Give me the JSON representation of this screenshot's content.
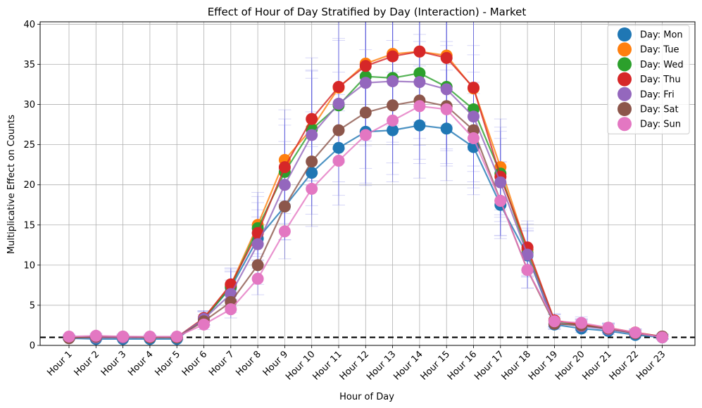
{
  "chart_data": {
    "type": "line",
    "title": "Effect of Hour of Day Stratified by Day (Interaction) - Market",
    "xlabel": "Hour of Day",
    "ylabel": "Multiplicative Effect on Counts",
    "categories": [
      "Hour 1",
      "Hour 2",
      "Hour 3",
      "Hour 4",
      "Hour 5",
      "Hour 6",
      "Hour 7",
      "Hour 8",
      "Hour 9",
      "Hour 10",
      "Hour 11",
      "Hour 12",
      "Hour 13",
      "Hour 14",
      "Hour 15",
      "Hour 16",
      "Hour 17",
      "Hour 18",
      "Hour 19",
      "Hour 20",
      "Hour 21",
      "Hour 22",
      "Hour 23"
    ],
    "ylim": [
      0,
      40.3
    ],
    "yticks": [
      0,
      5,
      10,
      15,
      20,
      25,
      30,
      35,
      40
    ],
    "grid": true,
    "legend_position": "top-right",
    "reference_line": 1,
    "series": [
      {
        "name": "Day: Mon",
        "color": "#1f77b4",
        "values": [
          0.9,
          0.8,
          0.8,
          0.8,
          0.8,
          3.3,
          7.2,
          13.3,
          17.3,
          21.5,
          24.6,
          26.6,
          26.8,
          27.4,
          27.0,
          24.7,
          17.5,
          11.2,
          2.6,
          2.1,
          1.8,
          1.3,
          1.0
        ]
      },
      {
        "name": "Day: Tue",
        "color": "#ff7f0e",
        "values": [
          1.0,
          1.0,
          1.0,
          1.0,
          1.0,
          3.4,
          7.5,
          15.0,
          23.1,
          27.0,
          32.1,
          35.1,
          36.3,
          36.6,
          36.1,
          32.0,
          22.2,
          11.9,
          3.1,
          2.6,
          2.2,
          1.6,
          1.1
        ]
      },
      {
        "name": "Day: Wed",
        "color": "#2ca02c",
        "values": [
          1.0,
          1.0,
          1.0,
          1.0,
          1.0,
          3.3,
          7.3,
          14.6,
          21.6,
          26.9,
          29.9,
          33.5,
          33.3,
          33.9,
          32.2,
          29.4,
          21.4,
          11.5,
          3.0,
          2.5,
          2.1,
          1.5,
          1.1
        ]
      },
      {
        "name": "Day: Thu",
        "color": "#d62728",
        "values": [
          1.0,
          1.0,
          1.0,
          1.0,
          1.0,
          3.4,
          7.6,
          14.0,
          22.2,
          28.2,
          32.2,
          34.8,
          36.0,
          36.6,
          35.8,
          32.1,
          21.0,
          12.2,
          3.1,
          2.6,
          2.1,
          1.6,
          1.1
        ]
      },
      {
        "name": "Day: Fri",
        "color": "#9467bd",
        "values": [
          1.0,
          1.0,
          1.0,
          1.0,
          1.0,
          3.3,
          6.4,
          12.6,
          20.0,
          26.2,
          30.1,
          32.7,
          32.9,
          32.8,
          31.9,
          28.5,
          20.3,
          11.3,
          2.8,
          2.4,
          2.0,
          1.5,
          1.1
        ]
      },
      {
        "name": "Day: Sat",
        "color": "#8c564b",
        "values": [
          0.9,
          1.1,
          1.1,
          1.0,
          1.0,
          3.0,
          5.4,
          10.0,
          17.3,
          22.9,
          26.8,
          29.0,
          29.9,
          30.5,
          29.8,
          26.8,
          18.0,
          9.4,
          2.7,
          2.5,
          2.1,
          1.5,
          1.1
        ]
      },
      {
        "name": "Day: Sun",
        "color": "#e377c2",
        "values": [
          1.1,
          1.2,
          1.1,
          1.1,
          1.1,
          2.6,
          4.5,
          8.3,
          14.2,
          19.5,
          23.0,
          26.2,
          28.0,
          29.8,
          29.4,
          25.8,
          18.0,
          9.4,
          3.0,
          2.8,
          2.2,
          1.6,
          1.0
        ]
      }
    ]
  }
}
